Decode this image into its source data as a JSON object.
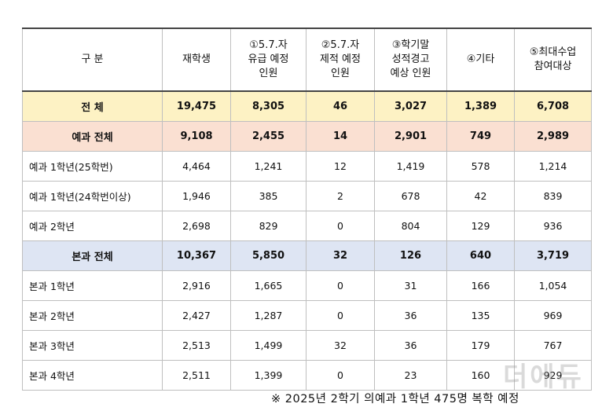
{
  "header": {
    "col0": "구 분",
    "col1": "재학생",
    "col2": [
      "①5.7.자",
      "유급 예정",
      "인원"
    ],
    "col3": [
      "②5.7.자",
      "제적 예정",
      "인원"
    ],
    "col4": [
      "③학기말",
      "성적경고",
      "예상 인원"
    ],
    "col5": "④기타",
    "col6": [
      "⑤최대수업",
      "참여대상"
    ]
  },
  "rows": [
    {
      "label": "전 체",
      "cells": [
        "19,475",
        "8,305",
        "46",
        "3,027",
        "1,389",
        "6,708"
      ]
    },
    {
      "label": "예과 전체",
      "cells": [
        "9,108",
        "2,455",
        "14",
        "2,901",
        "749",
        "2,989"
      ]
    },
    {
      "label": "예과 1학년(25학번)",
      "cells": [
        "4,464",
        "1,241",
        "12",
        "1,419",
        "578",
        "1,214"
      ]
    },
    {
      "label": "예과 1학년(24학번이상)",
      "cells": [
        "1,946",
        "385",
        "2",
        "678",
        "42",
        "839"
      ]
    },
    {
      "label": "예과 2학년",
      "cells": [
        "2,698",
        "829",
        "0",
        "804",
        "129",
        "936"
      ]
    },
    {
      "label": "본과 전체",
      "cells": [
        "10,367",
        "5,850",
        "32",
        "126",
        "640",
        "3,719"
      ]
    },
    {
      "label": "본과 1학년",
      "cells": [
        "2,916",
        "1,665",
        "0",
        "31",
        "166",
        "1,054"
      ]
    },
    {
      "label": "본과 2학년",
      "cells": [
        "2,427",
        "1,287",
        "0",
        "36",
        "135",
        "969"
      ]
    },
    {
      "label": "본과 3학년",
      "cells": [
        "2,513",
        "1,499",
        "32",
        "36",
        "179",
        "767"
      ]
    },
    {
      "label": "본과 4학년",
      "cells": [
        "2,511",
        "1,399",
        "0",
        "23",
        "160",
        "929"
      ]
    }
  ],
  "footnote": "※ 2025년 2학기 의예과 1학년 475명 복학 예정",
  "watermark": "더에듀"
}
